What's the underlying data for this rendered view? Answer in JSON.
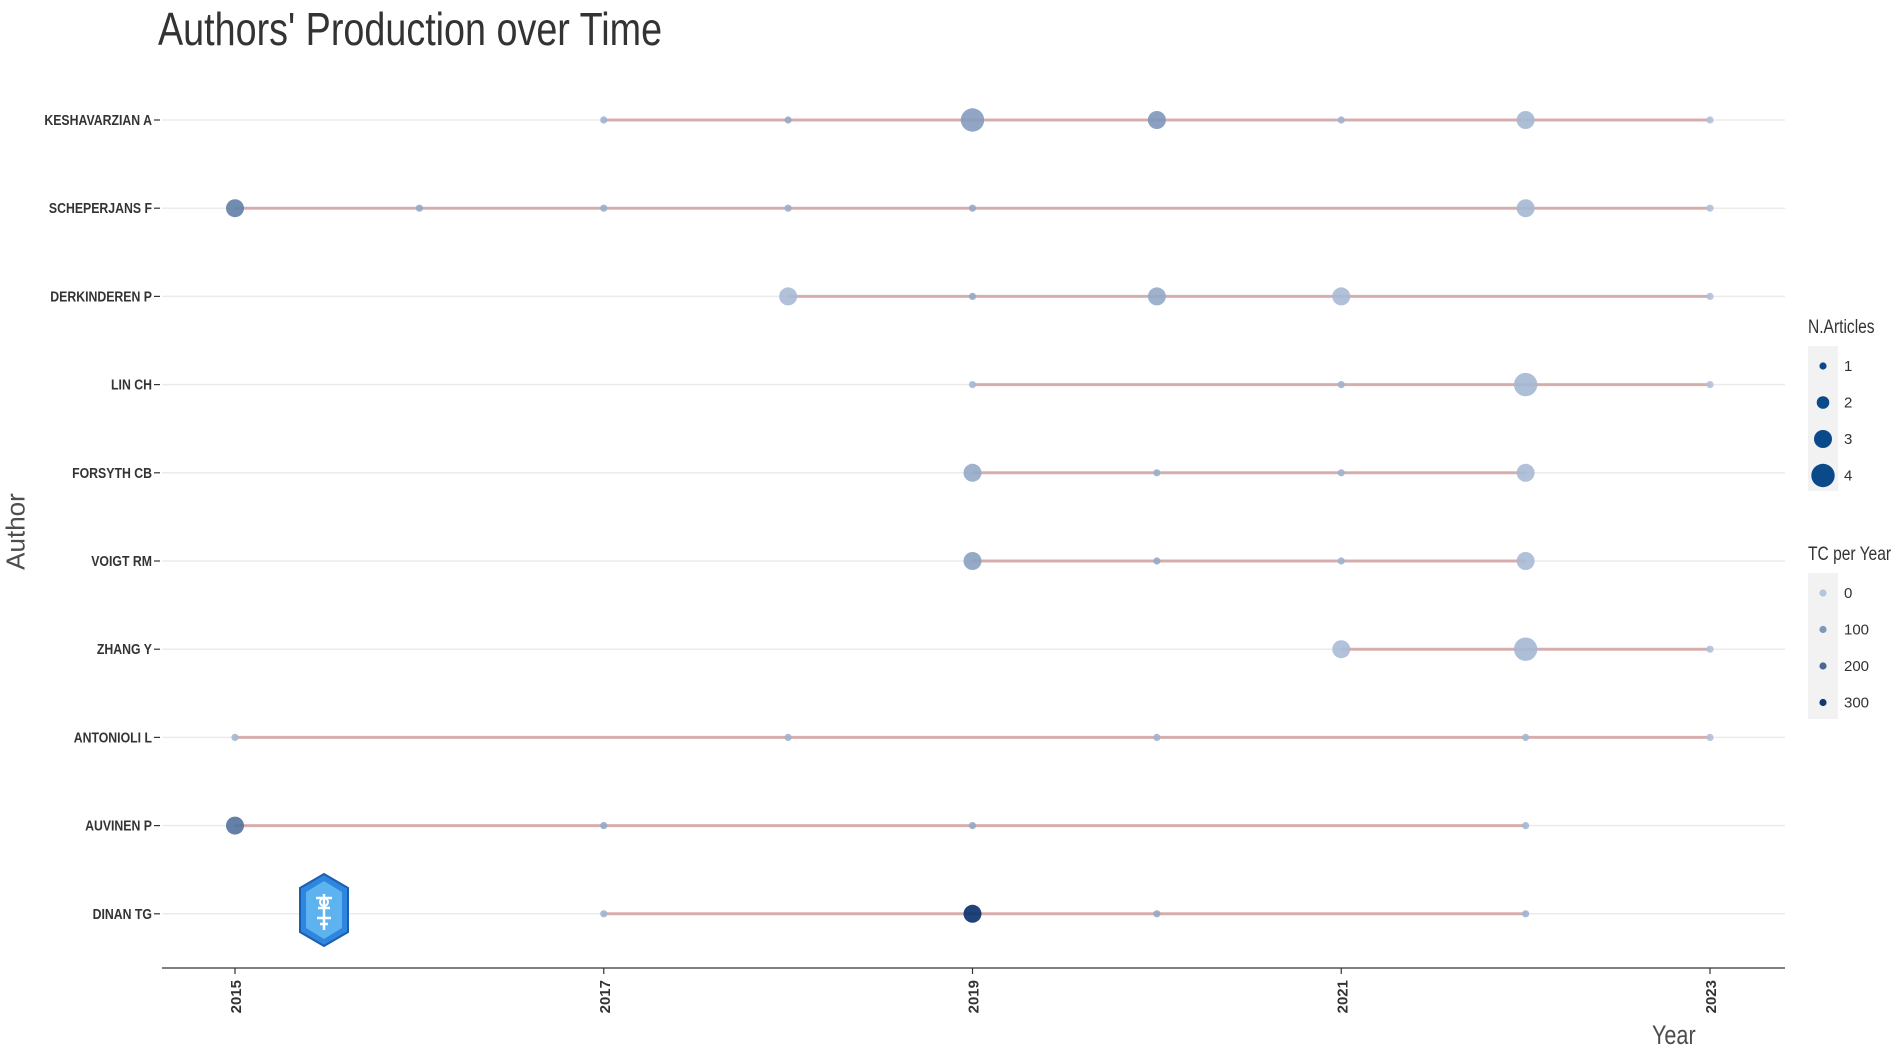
{
  "chart_data": {
    "type": "scatter",
    "title": "Authors' Production over Time",
    "xlabel": "Year",
    "ylabel": "Author",
    "x_ticks": [
      "2015",
      "2017",
      "2019",
      "2021",
      "2023"
    ],
    "xlim": [
      2015,
      2023
    ],
    "grid": "horizontal",
    "legend_position": "right",
    "colors": {
      "segment": "#cf9c9c",
      "low_tc": "#b4c6de",
      "high_tc": "#08306b",
      "grid": "#ebebeb",
      "axis": "#808080"
    },
    "authors": [
      {
        "name": "KESHAVARZIAN A",
        "span": [
          2017,
          2023
        ],
        "points": [
          {
            "year": 2017,
            "n_articles": 1,
            "tc_per_year": 40
          },
          {
            "year": 2018,
            "n_articles": 1,
            "tc_per_year": 60
          },
          {
            "year": 2019,
            "n_articles": 4,
            "tc_per_year": 90
          },
          {
            "year": 2020,
            "n_articles": 3,
            "tc_per_year": 100
          },
          {
            "year": 2021,
            "n_articles": 1,
            "tc_per_year": 40
          },
          {
            "year": 2022,
            "n_articles": 3,
            "tc_per_year": 30
          },
          {
            "year": 2023,
            "n_articles": 1,
            "tc_per_year": 10
          }
        ]
      },
      {
        "name": "SCHEPERJANS F",
        "span": [
          2015,
          2023
        ],
        "points": [
          {
            "year": 2015,
            "n_articles": 3,
            "tc_per_year": 150
          },
          {
            "year": 2016,
            "n_articles": 1,
            "tc_per_year": 60
          },
          {
            "year": 2017,
            "n_articles": 1,
            "tc_per_year": 50
          },
          {
            "year": 2018,
            "n_articles": 1,
            "tc_per_year": 50
          },
          {
            "year": 2019,
            "n_articles": 1,
            "tc_per_year": 60
          },
          {
            "year": 2022,
            "n_articles": 3,
            "tc_per_year": 30
          },
          {
            "year": 2023,
            "n_articles": 1,
            "tc_per_year": 10
          }
        ]
      },
      {
        "name": "DERKINDEREN P",
        "span": [
          2018,
          2023
        ],
        "points": [
          {
            "year": 2018,
            "n_articles": 3,
            "tc_per_year": 25
          },
          {
            "year": 2019,
            "n_articles": 1,
            "tc_per_year": 60
          },
          {
            "year": 2020,
            "n_articles": 3,
            "tc_per_year": 60
          },
          {
            "year": 2021,
            "n_articles": 3,
            "tc_per_year": 25
          },
          {
            "year": 2023,
            "n_articles": 1,
            "tc_per_year": 10
          }
        ]
      },
      {
        "name": "LIN CH",
        "span": [
          2019,
          2023
        ],
        "points": [
          {
            "year": 2019,
            "n_articles": 1,
            "tc_per_year": 30
          },
          {
            "year": 2021,
            "n_articles": 1,
            "tc_per_year": 40
          },
          {
            "year": 2022,
            "n_articles": 4,
            "tc_per_year": 30
          },
          {
            "year": 2023,
            "n_articles": 1,
            "tc_per_year": 10
          }
        ]
      },
      {
        "name": "FORSYTH CB",
        "span": [
          2019,
          2022
        ],
        "points": [
          {
            "year": 2019,
            "n_articles": 3,
            "tc_per_year": 60
          },
          {
            "year": 2020,
            "n_articles": 1,
            "tc_per_year": 50
          },
          {
            "year": 2021,
            "n_articles": 1,
            "tc_per_year": 40
          },
          {
            "year": 2022,
            "n_articles": 3,
            "tc_per_year": 25
          }
        ]
      },
      {
        "name": "VOIGT RM",
        "span": [
          2019,
          2022
        ],
        "points": [
          {
            "year": 2019,
            "n_articles": 3,
            "tc_per_year": 80
          },
          {
            "year": 2020,
            "n_articles": 1,
            "tc_per_year": 60
          },
          {
            "year": 2021,
            "n_articles": 1,
            "tc_per_year": 40
          },
          {
            "year": 2022,
            "n_articles": 3,
            "tc_per_year": 25
          }
        ]
      },
      {
        "name": "ZHANG Y",
        "span": [
          2021,
          2023
        ],
        "points": [
          {
            "year": 2021,
            "n_articles": 3,
            "tc_per_year": 20
          },
          {
            "year": 2022,
            "n_articles": 4,
            "tc_per_year": 30
          },
          {
            "year": 2023,
            "n_articles": 1,
            "tc_per_year": 10
          }
        ]
      },
      {
        "name": "ANTONIOLI L",
        "span": [
          2015,
          2023
        ],
        "points": [
          {
            "year": 2015,
            "n_articles": 1,
            "tc_per_year": 30
          },
          {
            "year": 2018,
            "n_articles": 1,
            "tc_per_year": 40
          },
          {
            "year": 2020,
            "n_articles": 1,
            "tc_per_year": 40
          },
          {
            "year": 2022,
            "n_articles": 1,
            "tc_per_year": 30
          },
          {
            "year": 2023,
            "n_articles": 1,
            "tc_per_year": 10
          }
        ]
      },
      {
        "name": "AUVINEN P",
        "span": [
          2015,
          2022
        ],
        "points": [
          {
            "year": 2015,
            "n_articles": 3,
            "tc_per_year": 180
          },
          {
            "year": 2017,
            "n_articles": 1,
            "tc_per_year": 60
          },
          {
            "year": 2019,
            "n_articles": 1,
            "tc_per_year": 60
          },
          {
            "year": 2022,
            "n_articles": 1,
            "tc_per_year": 30
          }
        ]
      },
      {
        "name": "DINAN TG",
        "span": [
          2017,
          2022
        ],
        "points": [
          {
            "year": 2017,
            "n_articles": 1,
            "tc_per_year": 40
          },
          {
            "year": 2019,
            "n_articles": 3,
            "tc_per_year": 320
          },
          {
            "year": 2020,
            "n_articles": 1,
            "tc_per_year": 60
          },
          {
            "year": 2022,
            "n_articles": 1,
            "tc_per_year": 40
          }
        ]
      }
    ],
    "legend_n_articles": {
      "title": "N.Articles",
      "items": [
        "1",
        "2",
        "3",
        "4"
      ]
    },
    "legend_tc": {
      "title": "TC per Year",
      "items": [
        "0",
        "100",
        "200",
        "300"
      ]
    }
  }
}
